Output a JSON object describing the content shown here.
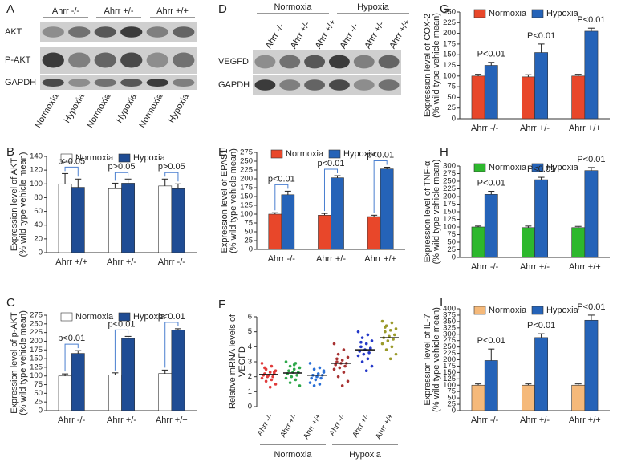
{
  "blots": [
    {
      "panel": "A",
      "columns": [
        "Ahrr -/-",
        "Ahrr +/-",
        "Ahrr +/+"
      ],
      "rows": [
        "AKT",
        "P-AKT",
        "GAPDH"
      ],
      "lanes": [
        "Normoxia",
        "Hypoxia",
        "Normoxia",
        "Hypoxia",
        "Normoxia",
        "Hypoxia"
      ]
    },
    {
      "panel": "D",
      "columns": [
        "Normoxia",
        "Hypoxia"
      ],
      "rows": [
        "VEGFD",
        "GAPDH"
      ],
      "lanes": [
        "Ahrr -/-",
        "Ahrr +/-",
        "Ahrr +/+",
        "Ahrr -/-",
        "Ahrr +/-",
        "Ahrr +/+"
      ]
    }
  ],
  "chart_data": [
    {
      "type": "bar",
      "panel": "B",
      "ylabel": "Expression level of AKT",
      "ysublabel": "(% wild type vehicle mean)",
      "categories": [
        "Ahrr +/+",
        "Ahrr +/-",
        "Ahrr -/-"
      ],
      "ylim": [
        0,
        140
      ],
      "yticks": [
        0,
        20,
        40,
        60,
        80,
        100,
        120,
        140
      ],
      "legend": "top",
      "bracket": true,
      "series": [
        {
          "name": "Normoxia",
          "color": "#ffffff",
          "values": [
            100,
            93,
            97
          ],
          "errors": [
            15,
            8,
            10
          ]
        },
        {
          "name": "Hypoxia",
          "color": "#1f4c94",
          "values": [
            95,
            101,
            93
          ],
          "errors": [
            12,
            6,
            7
          ]
        }
      ],
      "annotations": [
        "p>0.05",
        "p>0.05",
        "p>0.05"
      ]
    },
    {
      "type": "bar",
      "panel": "C",
      "ylabel": "Expression level of p-AKT",
      "ysublabel": "(% wild type vehicle mean)",
      "categories": [
        "Ahrr -/-",
        "Ahrr +/-",
        "Ahrr +/+"
      ],
      "ylim": [
        0,
        275
      ],
      "yticks": [
        0,
        25,
        50,
        75,
        100,
        125,
        150,
        175,
        200,
        225,
        250,
        275
      ],
      "legend": "top",
      "bracket": true,
      "series": [
        {
          "name": "Normoxia",
          "color": "#ffffff",
          "values": [
            100,
            103,
            107
          ],
          "errors": [
            6,
            6,
            10
          ]
        },
        {
          "name": "Hypoxia",
          "color": "#1f4c94",
          "values": [
            165,
            208,
            232
          ],
          "errors": [
            8,
            6,
            4
          ]
        }
      ],
      "annotations": [
        "p<0.01",
        "p<0.01",
        "p<0.01"
      ]
    },
    {
      "type": "bar",
      "panel": "E",
      "ylabel": "Expression level of EPAS1",
      "ysublabel": "(% wild type vehicle mean)",
      "categories": [
        "Ahrr -/-",
        "Ahrr +/-",
        "Ahrr +/+"
      ],
      "ylim": [
        0,
        275
      ],
      "yticks": [
        0,
        25,
        50,
        75,
        100,
        125,
        150,
        175,
        200,
        225,
        250,
        275
      ],
      "legend": "top",
      "bracket": true,
      "series": [
        {
          "name": "Normoxia",
          "color": "#e8472a",
          "values": [
            100,
            97,
            93
          ],
          "errors": [
            4,
            5,
            4
          ]
        },
        {
          "name": "Hypoxia",
          "color": "#2563b8",
          "values": [
            155,
            203,
            228
          ],
          "errors": [
            10,
            6,
            5
          ]
        }
      ],
      "annotations": [
        "p<0.01",
        "p<0.01",
        "p<0.01"
      ]
    },
    {
      "type": "strip",
      "panel": "F",
      "ylabel": "Relative mRNA levels of",
      "ysublabel": "VEGFD",
      "categories": [
        "Ahrr -/-",
        "Ahrr +/-",
        "Ahrr +/+",
        "Ahrr -/-",
        "Ahrr +/-",
        "Ahrr +/+"
      ],
      "colors": [
        "#e03c3c",
        "#2ea84a",
        "#2a6fd6",
        "#a83232",
        "#2438c8",
        "#9a9a2a"
      ],
      "ylim": [
        0,
        6
      ],
      "yticks": [
        0,
        1,
        2,
        3,
        4,
        5,
        6
      ],
      "values": [
        [
          2.9,
          2.7,
          2.5,
          2.4,
          2.3,
          2.2,
          2.2,
          2.1,
          2.1,
          2.0,
          2.0,
          1.9,
          1.8,
          1.7,
          1.5,
          1.3,
          2.6,
          2.3
        ],
        [
          3.0,
          2.9,
          2.7,
          2.6,
          2.5,
          2.4,
          2.3,
          2.3,
          2.2,
          2.1,
          2.0,
          1.9,
          1.8,
          1.6,
          1.4,
          2.8
        ],
        [
          2.9,
          2.6,
          2.5,
          2.3,
          2.2,
          2.1,
          2.1,
          2.0,
          1.9,
          1.9,
          1.8,
          1.6,
          1.5,
          1.4,
          2.4
        ],
        [
          4.2,
          3.8,
          3.5,
          3.3,
          3.1,
          3.0,
          2.9,
          2.9,
          2.8,
          2.7,
          2.6,
          2.5,
          2.3,
          2.0,
          1.7,
          1.4,
          3.2
        ],
        [
          5.0,
          4.8,
          4.6,
          4.4,
          4.2,
          4.0,
          3.9,
          3.8,
          3.7,
          3.6,
          3.5,
          3.4,
          3.2,
          3.0,
          2.7,
          2.4,
          4.3,
          3.9
        ],
        [
          5.7,
          5.6,
          5.4,
          5.2,
          5.1,
          5.0,
          4.8,
          4.7,
          4.6,
          4.5,
          4.4,
          4.2,
          4.0,
          3.8,
          3.5,
          3.2,
          5.3
        ]
      ],
      "means": [
        2.15,
        2.25,
        2.1,
        2.9,
        3.8,
        4.6
      ],
      "groups": [
        "Normoxia",
        "Hypoxia"
      ]
    },
    {
      "type": "bar",
      "panel": "G",
      "ylabel": "Expression level of COX-2",
      "ysublabel": "(% wild type vehicle mean)",
      "categories": [
        "Ahrr -/-",
        "Ahrr +/-",
        "Ahrr +/+"
      ],
      "ylim": [
        0,
        250
      ],
      "yticks": [
        0,
        25,
        50,
        75,
        100,
        125,
        150,
        175,
        200,
        225,
        250
      ],
      "legend": "top",
      "bracket": false,
      "series": [
        {
          "name": "Normoxia",
          "color": "#e8472a",
          "values": [
            100,
            98,
            100
          ],
          "errors": [
            4,
            5,
            4
          ]
        },
        {
          "name": "Hypoxia",
          "color": "#2563b8",
          "values": [
            125,
            155,
            205
          ],
          "errors": [
            7,
            20,
            7
          ]
        }
      ],
      "annotations": [
        "P<0.01",
        "P<0.01",
        "P<0.01"
      ]
    },
    {
      "type": "bar",
      "panel": "H",
      "ylabel": "Expression level of TNF-α",
      "ysublabel": "(% wild type vehicle mean)",
      "categories": [
        "Ahrr -/-",
        "Ahrr +/-",
        "Ahrr +/+"
      ],
      "ylim": [
        0,
        300
      ],
      "yticks": [
        0,
        25,
        50,
        75,
        100,
        125,
        150,
        175,
        200,
        225,
        250,
        275,
        300
      ],
      "legend": "top",
      "bracket": false,
      "series": [
        {
          "name": "Normoxia",
          "color": "#2db82d",
          "values": [
            100,
            98,
            98
          ],
          "errors": [
            3,
            5,
            4
          ]
        },
        {
          "name": "Hypoxia",
          "color": "#2563b8",
          "values": [
            207,
            255,
            285
          ],
          "errors": [
            10,
            8,
            10
          ]
        }
      ],
      "annotations": [
        "P<0.01",
        "P<0.01",
        "P<0.01"
      ]
    },
    {
      "type": "bar",
      "panel": "I",
      "ylabel": "Expression level of IL-7",
      "ysublabel": "(% wild type vehicle mean)",
      "categories": [
        "Ahrr -/-",
        "Ahrr +/-",
        "Ahrr +/+"
      ],
      "ylim": [
        0,
        400
      ],
      "yticks": [
        0,
        25,
        50,
        75,
        100,
        125,
        150,
        175,
        200,
        225,
        250,
        275,
        300,
        325,
        350,
        375,
        400
      ],
      "legend": "top",
      "bracket": false,
      "series": [
        {
          "name": "Normoxia",
          "color": "#f5b97a",
          "values": [
            100,
            100,
            100
          ],
          "errors": [
            5,
            5,
            5
          ]
        },
        {
          "name": "Hypoxia",
          "color": "#2563b8",
          "values": [
            197,
            287,
            355
          ],
          "errors": [
            45,
            15,
            20
          ]
        }
      ],
      "annotations": [
        "P<0.01",
        "P<0.01",
        "P<0.01"
      ]
    }
  ]
}
